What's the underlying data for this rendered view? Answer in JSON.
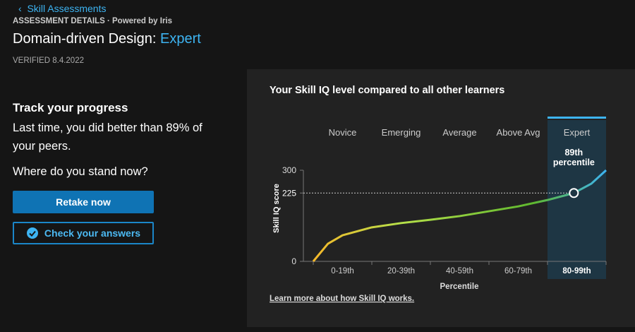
{
  "header": {
    "back_link": "Skill Assessments",
    "section": "ASSESSMENT DETAILS",
    "powered_by": "Powered by Iris",
    "title": "Domain-driven Design:",
    "level": "Expert",
    "verified": "VERIFIED 8.4.2022"
  },
  "progress": {
    "heading": "Track your progress",
    "last_time": "Last time, you did better than 89% of your peers.",
    "question": "Where do you stand now?",
    "retake_button": "Retake now",
    "check_button": "Check your answers"
  },
  "chart_data": {
    "type": "line",
    "title": "Your Skill IQ level compared to all other learners",
    "levels": [
      "Novice",
      "Emerging",
      "Average",
      "Above Avg",
      "Expert"
    ],
    "highlight_level": 4,
    "categories": [
      "0-19th",
      "20-39th",
      "40-59th",
      "60-79th",
      "80-99th"
    ],
    "x_label": "Percentile",
    "y_label": "Skill IQ score",
    "x": [
      0,
      5,
      10,
      20,
      30,
      40,
      50,
      60,
      70,
      80,
      89,
      95,
      100
    ],
    "values": [
      0,
      58,
      86,
      112,
      126,
      137,
      149,
      165,
      181,
      202,
      225,
      256,
      300
    ],
    "xlim": [
      0,
      100
    ],
    "ylim": [
      0,
      300
    ],
    "yticks": [
      0,
      300
    ],
    "marker": {
      "x": 89,
      "y": 225,
      "label_line1": "89th",
      "label_line2": "percentile"
    },
    "learn_more": "Learn more about how Skill IQ works."
  }
}
